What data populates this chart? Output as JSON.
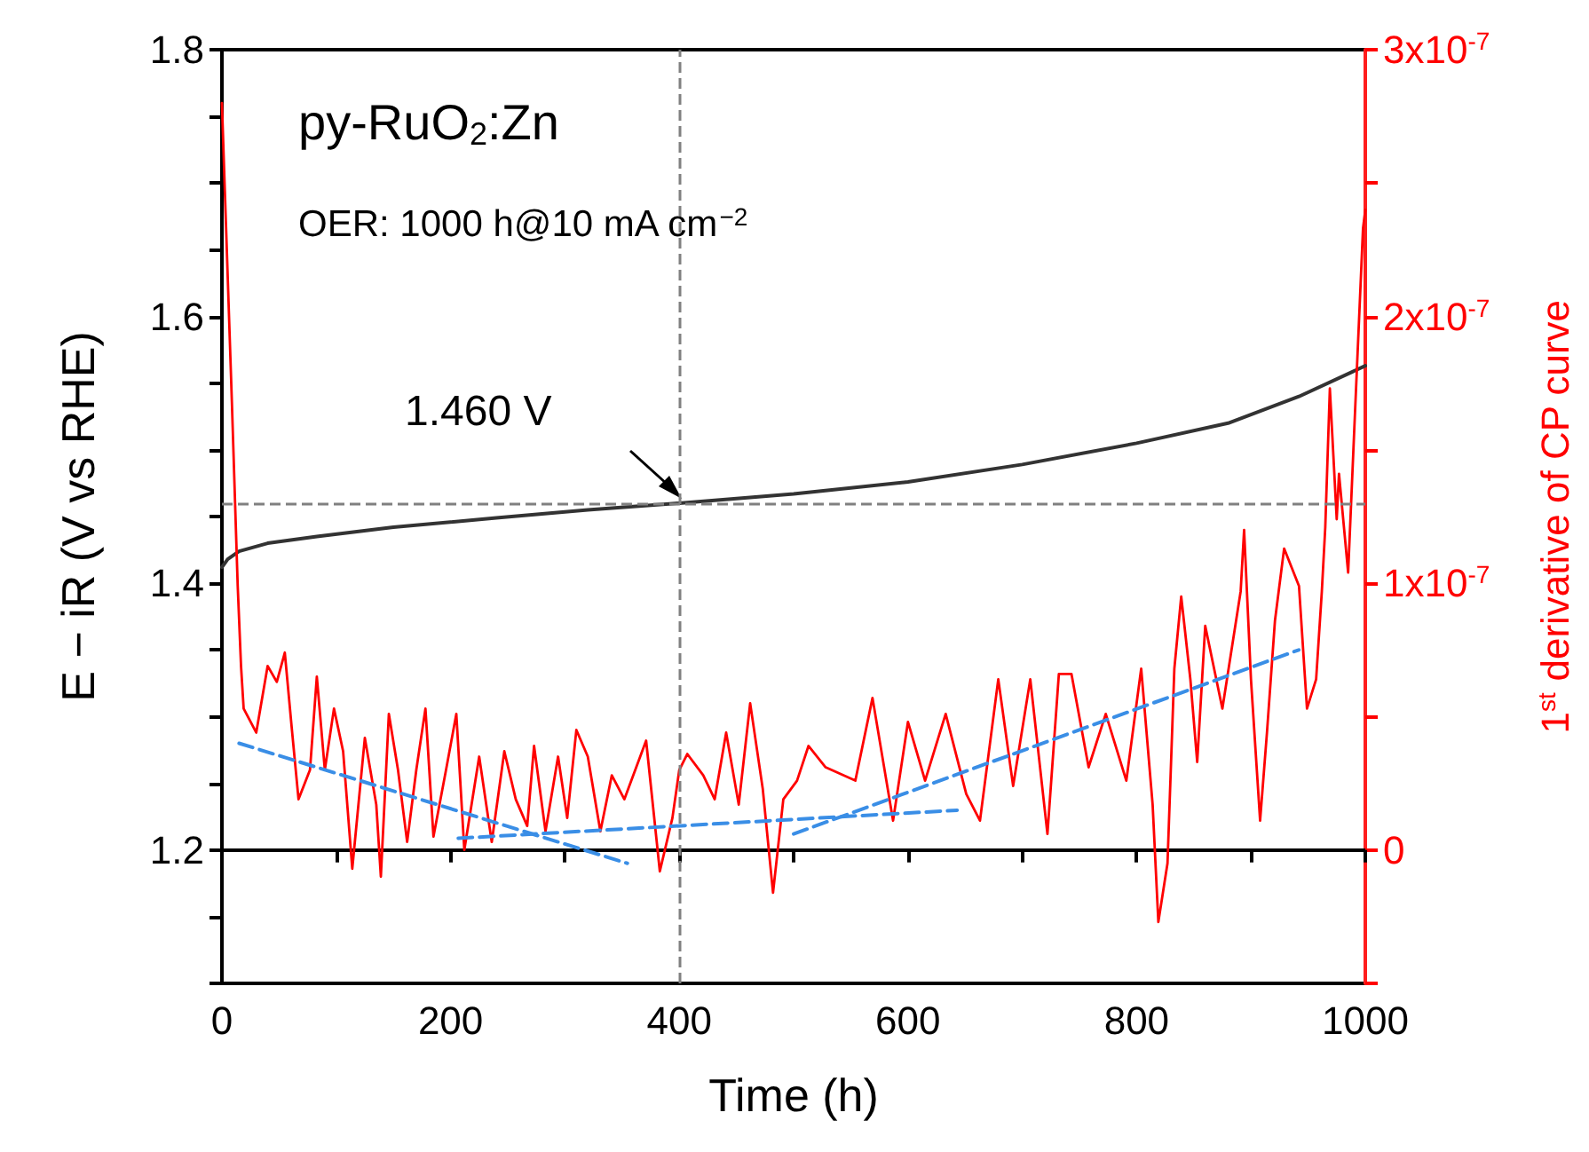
{
  "chart_data": {
    "type": "line",
    "xlabel": "Time (h)",
    "ylabel": "E − iR (V vs RHE)",
    "y2label": "1$^{st}$ derivative of CP curve",
    "xlim": [
      0,
      1000
    ],
    "xticks": [
      0,
      {
        "value": 100,
        "label": null
      },
      200,
      {
        "value": 300,
        "label": null
      },
      400,
      {
        "value": 500,
        "label": null
      },
      600,
      {
        "value": 700,
        "label": null
      },
      800,
      {
        "value": 900,
        "label": null
      },
      1000
    ],
    "ylim": [
      1.1,
      1.8
    ],
    "yticks": [
      {
        "value": 1.1,
        "label": null
      },
      {
        "value": 1.15,
        "label": null
      },
      1.2,
      {
        "value": 1.25,
        "label": null
      },
      {
        "value": 1.3,
        "label": null
      },
      {
        "value": 1.35,
        "label": null
      },
      1.4,
      {
        "value": 1.45,
        "label": null
      },
      {
        "value": 1.5,
        "label": null
      },
      {
        "value": 1.55,
        "label": null
      },
      1.6,
      {
        "value": 1.65,
        "label": null
      },
      {
        "value": 1.7,
        "label": null
      },
      {
        "value": 1.75,
        "label": null
      },
      1.8
    ],
    "y2lim": [
      -5e-08,
      3e-07
    ],
    "y2ticks": [
      {
        "value": -5e-08,
        "label": null
      },
      0,
      {
        "value": 5e-08,
        "label": null
      },
      {
        "value": 1e-07,
        "label": "1x10$^{-7}$"
      },
      {
        "value": 1.5e-07,
        "label": null
      },
      {
        "value": 2e-07,
        "label": "2x10$^{-7}$"
      },
      {
        "value": 2.5e-07,
        "label": null
      },
      {
        "value": 3e-07,
        "label": "3x10$^{-7}$"
      }
    ],
    "grid": false,
    "marker": "none",
    "line_style": "solid",
    "series": [
      {
        "color": "#333333",
        "x": [
          0,
          5,
          15,
          40,
          83,
          150,
          240,
          320,
          400,
          500,
          600,
          700,
          800,
          880,
          942,
          1000
        ],
        "values": [
          1.412,
          1.418,
          1.424,
          1.43,
          1.435,
          1.442,
          1.449,
          1.455,
          1.46,
          1.467,
          1.476,
          1.489,
          1.505,
          1.52,
          1.54,
          1.563
        ]
      },
      {
        "color": "#ff0000",
        "axis": "y2",
        "x": [
          0,
          8.7,
          13.8,
          16.7,
          19,
          30,
          40,
          48,
          55,
          61,
          67,
          77,
          83,
          90,
          98,
          106,
          114,
          125,
          135,
          139,
          146,
          154,
          162,
          170,
          178,
          185,
          196,
          205,
          212,
          225,
          236,
          247,
          257,
          267,
          273,
          283,
          294,
          302,
          310,
          320,
          331,
          341,
          352,
          371,
          383,
          394,
          400,
          407,
          421,
          431,
          441,
          452,
          462,
          473,
          482,
          491,
          503,
          513,
          528,
          554,
          569,
          587,
          600,
          615,
          633,
          651,
          663,
          679,
          692,
          707,
          722,
          732,
          743,
          758,
          773,
          791,
          804,
          814,
          819,
          827,
          833,
          839,
          847,
          853,
          860,
          875,
          891,
          894,
          900,
          908,
          914,
          921,
          929,
          942,
          949,
          957,
          962,
          965,
          969,
          975,
          977,
          985,
          991,
          998,
          1000
        ],
        "values": [
          2.8e-07,
          1.68e-07,
          9.9e-08,
          6.9e-08,
          5.3e-08,
          4.4e-08,
          6.9e-08,
          6.3e-08,
          7.4e-08,
          4.6e-08,
          1.9e-08,
          3e-08,
          6.5e-08,
          3e-08,
          5.3e-08,
          3.7e-08,
          -7e-09,
          4.2e-08,
          1.7e-08,
          -1e-08,
          5.1e-08,
          3e-08,
          3e-09,
          3e-08,
          5.3e-08,
          5e-09,
          3e-08,
          5.1e-08,
          0,
          3.5e-08,
          3e-09,
          3.7e-08,
          1.9e-08,
          9e-09,
          3.9e-08,
          7e-09,
          3.5e-08,
          1.2e-08,
          4.5e-08,
          3.5e-08,
          7e-09,
          2.8e-08,
          1.9e-08,
          4.1e-08,
          -8e-09,
          1.2e-08,
          3e-08,
          3.6e-08,
          2.8e-08,
          1.9e-08,
          4.4e-08,
          1.7e-08,
          5.5e-08,
          2.3e-08,
          -1.6e-08,
          1.9e-08,
          2.6e-08,
          3.9e-08,
          3.1e-08,
          2.6e-08,
          5.7e-08,
          1.1e-08,
          4.8e-08,
          2.6e-08,
          5.1e-08,
          2.1e-08,
          1.1e-08,
          6.4e-08,
          2.4e-08,
          6.4e-08,
          6e-09,
          6.6e-08,
          6.6e-08,
          3.1e-08,
          5.1e-08,
          2.6e-08,
          6.8e-08,
          1.7e-08,
          -2.7e-08,
          -5e-09,
          6.8e-08,
          9.5e-08,
          6.4e-08,
          3.3e-08,
          8.4e-08,
          5.3e-08,
          9.7e-08,
          1.2e-07,
          6.4e-08,
          1.1e-08,
          4.4e-08,
          8.6e-08,
          1.13e-07,
          9.9e-08,
          5.3e-08,
          6.4e-08,
          9.7e-08,
          1.21e-07,
          1.73e-07,
          1.24e-07,
          1.41e-07,
          1.04e-07,
          1.64e-07,
          2.33e-07,
          2.4e-07
        ]
      },
      {
        "color": "#3a8ee6",
        "axis": "y2",
        "line_style": "dashed",
        "x": [
          15,
          354.6
        ],
        "values": [
          4e-08,
          -5e-09
        ]
      },
      {
        "color": "#3a8ee6",
        "axis": "y2",
        "line_style": "dashed",
        "x": [
          206.7,
          643
        ],
        "values": [
          4.4e-09,
          1.49e-08
        ]
      },
      {
        "color": "#3a8ee6",
        "axis": "y2",
        "line_style": "dashed",
        "x": [
          500,
          941.8
        ],
        "values": [
          6e-09,
          7.5e-08
        ]
      }
    ],
    "ref_lines": [
      {
        "axis": "x",
        "value": 400,
        "color": "#808080",
        "line_style": "dashed"
      },
      {
        "axis": "y",
        "value": 1.46,
        "color": "#808080",
        "line_style": "dashed"
      }
    ],
    "annotations": [
      "py-RuO$_{2}$:Zn",
      "OER: 1000 h@10 mA cm$^{−2}$",
      "1.460 V"
    ]
  }
}
